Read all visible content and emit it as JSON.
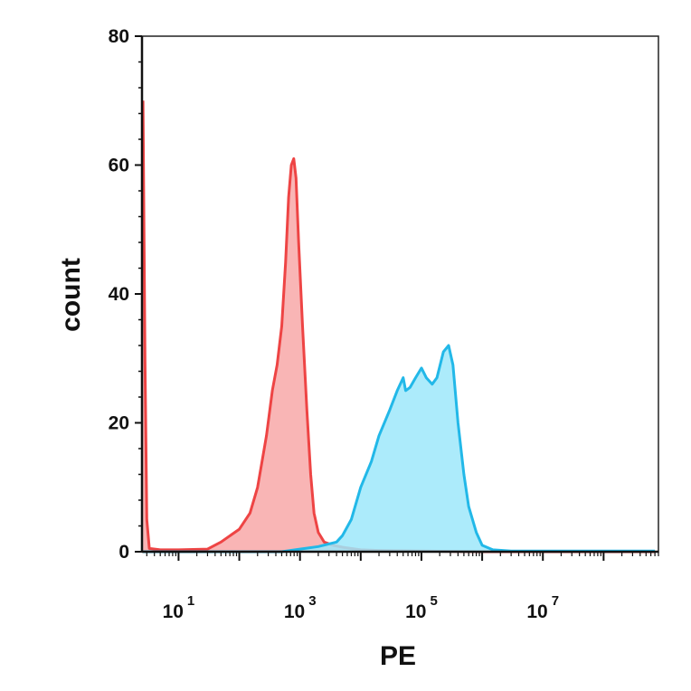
{
  "chart_data": {
    "type": "area",
    "title": "",
    "xlabel": "PE",
    "ylabel": "count",
    "x_scale": "log10",
    "xlim": [
      2.5,
      800000000
    ],
    "ylim": [
      0,
      80
    ],
    "x_ticks": [
      {
        "value": 10,
        "base": "10",
        "exp": "1"
      },
      {
        "value": 1000,
        "base": "10",
        "exp": "3"
      },
      {
        "value": 100000,
        "base": "10",
        "exp": "5"
      },
      {
        "value": 10000000,
        "base": "10",
        "exp": "7"
      }
    ],
    "y_ticks": [
      {
        "value": 0,
        "label": "0"
      },
      {
        "value": 20,
        "label": "20"
      },
      {
        "value": 40,
        "label": "40"
      },
      {
        "value": 60,
        "label": "60"
      },
      {
        "value": 80,
        "label": "80"
      }
    ],
    "grid": false,
    "legend": "none",
    "series": [
      {
        "color": "#ee4444",
        "fill": "#f8a8a8",
        "points": [
          [
            2.6,
            70
          ],
          [
            2.8,
            30
          ],
          [
            3.0,
            5
          ],
          [
            3.3,
            0.5
          ],
          [
            5,
            0.3
          ],
          [
            10,
            0.3
          ],
          [
            30,
            0.4
          ],
          [
            50,
            1.5
          ],
          [
            100,
            3.5
          ],
          [
            150,
            6
          ],
          [
            200,
            10
          ],
          [
            280,
            18
          ],
          [
            350,
            25
          ],
          [
            420,
            29
          ],
          [
            500,
            35
          ],
          [
            580,
            45
          ],
          [
            650,
            55
          ],
          [
            720,
            60
          ],
          [
            790,
            61
          ],
          [
            860,
            58
          ],
          [
            950,
            48
          ],
          [
            1100,
            35
          ],
          [
            1300,
            22
          ],
          [
            1500,
            12
          ],
          [
            1700,
            6
          ],
          [
            2000,
            3
          ],
          [
            2500,
            1.5
          ],
          [
            3500,
            1
          ],
          [
            5000,
            0.7
          ],
          [
            10000,
            0.3
          ],
          [
            20000,
            0.2
          ],
          [
            100000,
            0.1
          ],
          [
            1000000,
            0
          ],
          [
            700000000,
            0
          ]
        ]
      },
      {
        "color": "#22b8e8",
        "fill": "#9ee8fa",
        "points": [
          [
            2.6,
            0
          ],
          [
            500,
            0
          ],
          [
            1000,
            0.4
          ],
          [
            2000,
            0.8
          ],
          [
            4000,
            1.5
          ],
          [
            5000,
            2.5
          ],
          [
            7000,
            5
          ],
          [
            10000,
            10
          ],
          [
            15000,
            14
          ],
          [
            20000,
            18
          ],
          [
            30000,
            22
          ],
          [
            40000,
            25
          ],
          [
            50000,
            27
          ],
          [
            55000,
            25
          ],
          [
            65000,
            25.5
          ],
          [
            80000,
            27
          ],
          [
            100000,
            28.5
          ],
          [
            120000,
            27
          ],
          [
            150000,
            26
          ],
          [
            180000,
            27
          ],
          [
            230000,
            31
          ],
          [
            280000,
            32
          ],
          [
            330000,
            29
          ],
          [
            400000,
            20
          ],
          [
            500000,
            12
          ],
          [
            600000,
            7
          ],
          [
            800000,
            3
          ],
          [
            1000000,
            1
          ],
          [
            1500000,
            0.3
          ],
          [
            3000000,
            0.1
          ],
          [
            10000000,
            0.1
          ],
          [
            700000000,
            0.1
          ]
        ]
      }
    ]
  }
}
